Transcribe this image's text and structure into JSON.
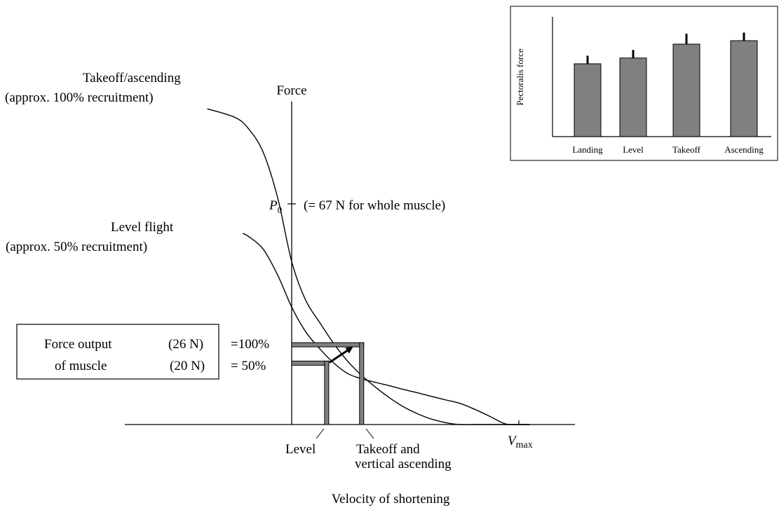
{
  "chart_data": [
    {
      "type": "line",
      "title": "",
      "xlabel": "Velocity of shortening",
      "ylabel": "Force",
      "grid": false,
      "series": [
        {
          "name": "Takeoff/ascending (approx. 100% recruitment)",
          "x": [
            -1.4,
            -0.93,
            -0.7,
            -0.47,
            -0.23,
            0,
            0.23,
            0.47,
            0.7,
            0.93,
            1.16,
            1.4,
            1.63,
            1.86,
            2.1,
            2.33,
            2.56,
            2.79,
            3.02,
            3.26,
            3.49,
            3.6,
            3.72,
            3.95
          ],
          "y": [
            102.9,
            100.0,
            96.0,
            88.6,
            73.7,
            53.1,
            40.6,
            33.1,
            26.3,
            20.6,
            16.0,
            12.0,
            8.6,
            5.7,
            3.4,
            1.7,
            0.6,
            0.0,
            0.0,
            0.0,
            0.0,
            0.0,
            0.0,
            0.0
          ]
        },
        {
          "name": "Level flight (approx. 50% recruitment)",
          "x": [
            -0.81,
            -0.7,
            -0.47,
            -0.23,
            0,
            0.23,
            0.47,
            0.7,
            0.93,
            1.16,
            1.4,
            1.63,
            1.86,
            2.1,
            2.33,
            2.56,
            2.79,
            3.02,
            3.26,
            3.49,
            3.6,
            3.72,
            3.95
          ],
          "y": [
            62.3,
            61.1,
            57.1,
            48.6,
            38.3,
            30.3,
            24.6,
            20.0,
            16.6,
            14.9,
            13.7,
            12.6,
            11.4,
            10.3,
            9.1,
            8.0,
            6.9,
            5.1,
            2.9,
            0.6,
            0.0,
            0.0,
            0.0
          ]
        }
      ],
      "annotations": {
        "series1_label": [
          "Takeoff/ascending",
          "(approx. 100% recruitment)"
        ],
        "series2_label": [
          "Level flight",
          "(approx. 50% recruitment)"
        ],
        "p0_note": "(= 67 N for whole muscle)",
        "force_box": {
          "line1": "Force output",
          "line2": "of muscle",
          "value_high": "(26 N)",
          "value_low": "(20 N)",
          "mark_high": "=100%",
          "mark_low": "= 50%"
        },
        "x_markers": {
          "level": "Level",
          "takeoff": [
            "Takeoff and",
            "vertical ascending"
          ]
        }
      },
      "operating_points": [
        {
          "label": "Level",
          "x": 0.58,
          "y": 20.0
        },
        {
          "label": "Takeoff and vertical ascending",
          "x": 1.16,
          "y": 26.0
        }
      ]
    },
    {
      "type": "bar",
      "title": "",
      "xlabel": "",
      "ylabel": "Pectoralis force",
      "categories": [
        "Landing",
        "Level",
        "Takeoff",
        "Ascending"
      ],
      "values": [
        0.63,
        0.68,
        0.8,
        0.83
      ],
      "errors": [
        0.07,
        0.07,
        0.09,
        0.07
      ],
      "ylim": [
        0,
        1
      ],
      "bar_color": "#808080",
      "grid": false
    }
  ]
}
